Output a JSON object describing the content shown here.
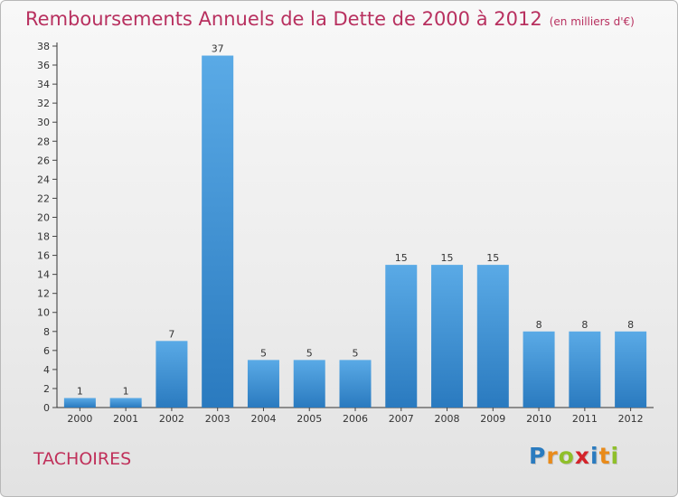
{
  "header": {
    "title": "Remboursements Annuels de la Dette de 2000 à 2012",
    "unit_note": "(en milliers d'€)"
  },
  "footer": {
    "commune": "TACHOIRES",
    "logo_letters": [
      "P",
      "r",
      "o",
      "x",
      "i",
      "t",
      "i"
    ],
    "logo_colors": [
      "#2a7bbf",
      "#e98b1a",
      "#8fbf2a",
      "#d4232a",
      "#2a7bbf",
      "#e98b1a",
      "#8fbf2a"
    ]
  },
  "colors": {
    "bar_light": "#5aaae6",
    "bar_dark": "#2a7abf",
    "title": "#b8305f",
    "axis": "#333333",
    "grid_tick": "#444444"
  },
  "chart_data": {
    "type": "bar",
    "title": "Remboursements Annuels de la Dette de 2000 à 2012",
    "subtitle": "(en milliers d'€)",
    "xlabel": "",
    "ylabel": "",
    "categories": [
      "2000",
      "2001",
      "2002",
      "2003",
      "2004",
      "2005",
      "2006",
      "2007",
      "2008",
      "2009",
      "2010",
      "2011",
      "2012"
    ],
    "values": [
      1,
      1,
      7,
      37,
      5,
      5,
      5,
      15,
      15,
      15,
      8,
      8,
      8
    ],
    "data_labels": [
      "1",
      "1",
      "7",
      "37",
      "5",
      "5",
      "5",
      "15",
      "15",
      "15",
      "8",
      "8",
      "8"
    ],
    "ylim": [
      0,
      38
    ],
    "yticks": [
      0,
      2,
      4,
      6,
      8,
      10,
      12,
      14,
      16,
      18,
      20,
      22,
      24,
      26,
      28,
      30,
      32,
      34,
      36,
      38
    ],
    "grid": false,
    "legend": "none"
  }
}
